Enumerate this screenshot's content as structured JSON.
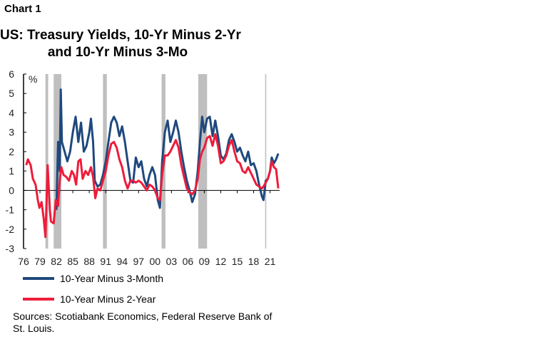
{
  "chart_label": "Chart 1",
  "chart_data": {
    "type": "line",
    "title": "US: Treasury Yields, 10-Yr Minus 2-Yr and 10-Yr Minus 3-Mo",
    "title_lines": [
      "US: Treasury Yields, 10-Yr Minus 2-Yr",
      "and 10-Yr Minus 3-Mo"
    ],
    "ylabel": "%",
    "ylim": [
      -3,
      6
    ],
    "yticks": [
      "-3",
      "-2",
      "-1",
      "0",
      "1",
      "2",
      "3",
      "4",
      "5",
      "6"
    ],
    "xlim": [
      1976,
      2022.6
    ],
    "xticks": [
      "76",
      "79",
      "82",
      "85",
      "88",
      "91",
      "94",
      "97",
      "00",
      "03",
      "06",
      "09",
      "12",
      "15",
      "18",
      "21"
    ],
    "recessions": [
      [
        1980.0,
        1980.5
      ],
      [
        1981.5,
        1982.9
      ],
      [
        1990.5,
        1991.2
      ],
      [
        2001.2,
        2001.9
      ],
      [
        2007.9,
        2009.5
      ],
      [
        2020.1,
        2020.3
      ]
    ],
    "series": [
      {
        "name": "10-Year Minus 3-Month",
        "color": "#1f497d",
        "x": [
          1982.0,
          1982.3,
          1982.6,
          1982.8,
          1983.0,
          1983.5,
          1984.0,
          1984.5,
          1985.0,
          1985.5,
          1986.0,
          1986.5,
          1987.0,
          1987.5,
          1988.0,
          1988.3,
          1988.7,
          1989.0,
          1989.5,
          1990.0,
          1990.5,
          1991.0,
          1991.5,
          1992.0,
          1992.5,
          1993.0,
          1993.5,
          1994.0,
          1994.5,
          1995.0,
          1995.5,
          1996.0,
          1996.5,
          1997.0,
          1997.5,
          1998.0,
          1998.5,
          1999.0,
          1999.5,
          2000.0,
          2000.5,
          2000.9,
          2001.3,
          2001.8,
          2002.3,
          2002.8,
          2003.3,
          2003.8,
          2004.3,
          2004.8,
          2005.3,
          2005.8,
          2006.3,
          2006.8,
          2007.3,
          2007.8,
          2008.2,
          2008.6,
          2009.0,
          2009.5,
          2010.0,
          2010.5,
          2011.0,
          2011.5,
          2012.0,
          2012.5,
          2013.0,
          2013.5,
          2014.0,
          2014.5,
          2015.0,
          2015.5,
          2016.0,
          2016.5,
          2017.0,
          2017.5,
          2018.0,
          2018.5,
          2019.0,
          2019.5,
          2019.8,
          2020.2,
          2020.6,
          2021.0,
          2021.3,
          2021.7,
          2022.1,
          2022.5
        ],
        "values": [
          -1.0,
          2.5,
          1.0,
          5.2,
          2.5,
          2.0,
          1.5,
          2.0,
          3.0,
          3.8,
          2.5,
          3.5,
          2.0,
          2.3,
          3.0,
          3.7,
          2.5,
          0.5,
          0.2,
          0.3,
          0.8,
          1.5,
          2.5,
          3.5,
          3.8,
          3.5,
          2.8,
          3.3,
          2.5,
          1.5,
          0.5,
          0.4,
          1.7,
          1.2,
          1.5,
          0.6,
          0.2,
          0.8,
          1.2,
          0.8,
          -0.5,
          -0.9,
          1.5,
          3.0,
          3.6,
          2.5,
          3.0,
          3.6,
          3.0,
          2.0,
          1.2,
          0.5,
          0.0,
          -0.6,
          -0.2,
          1.0,
          2.5,
          3.8,
          3.0,
          3.7,
          3.8,
          2.8,
          3.6,
          2.8,
          1.8,
          1.6,
          1.9,
          2.6,
          2.9,
          2.5,
          2.0,
          2.2,
          1.8,
          1.5,
          2.0,
          1.3,
          1.4,
          1.0,
          0.3,
          -0.3,
          -0.5,
          0.5,
          0.6,
          1.0,
          1.7,
          1.4,
          1.6,
          1.9
        ]
      },
      {
        "name": "10-Year Minus 2-Year",
        "color": "#ee1c3a",
        "x": [
          1976.5,
          1976.8,
          1977.3,
          1977.7,
          1978.2,
          1978.6,
          1978.9,
          1979.3,
          1979.7,
          1980.0,
          1980.4,
          1980.8,
          1981.0,
          1981.5,
          1981.9,
          1982.3,
          1982.6,
          1982.9,
          1983.3,
          1983.8,
          1984.3,
          1984.8,
          1985.2,
          1985.6,
          1986.0,
          1986.4,
          1986.8,
          1987.3,
          1987.8,
          1988.3,
          1988.7,
          1989.1,
          1989.5,
          1990.0,
          1990.5,
          1991.0,
          1991.5,
          1992.0,
          1992.5,
          1993.0,
          1993.5,
          1994.0,
          1994.5,
          1995.0,
          1995.5,
          1996.0,
          1996.5,
          1997.0,
          1997.5,
          1998.0,
          1998.5,
          1999.0,
          1999.5,
          2000.0,
          2000.5,
          2000.9,
          2001.3,
          2001.8,
          2002.3,
          2002.8,
          2003.3,
          2003.8,
          2004.3,
          2004.8,
          2005.3,
          2005.8,
          2006.3,
          2006.8,
          2007.3,
          2007.8,
          2008.2,
          2008.6,
          2009.0,
          2009.5,
          2010.0,
          2010.5,
          2011.0,
          2011.5,
          2012.0,
          2012.5,
          2013.0,
          2013.5,
          2014.0,
          2014.5,
          2015.0,
          2015.5,
          2016.0,
          2016.5,
          2017.0,
          2017.5,
          2018.0,
          2018.5,
          2019.0,
          2019.5,
          2019.8,
          2020.2,
          2020.6,
          2021.0,
          2021.3,
          2021.7,
          2022.1,
          2022.5
        ],
        "values": [
          1.3,
          1.6,
          1.3,
          0.6,
          0.3,
          -0.5,
          -0.9,
          -0.6,
          -1.5,
          -2.4,
          1.3,
          -1.0,
          -1.6,
          -1.7,
          -0.5,
          -0.8,
          0.5,
          1.2,
          0.8,
          0.7,
          0.5,
          1.0,
          0.8,
          0.3,
          1.5,
          1.6,
          0.6,
          1.0,
          0.8,
          1.2,
          0.7,
          -0.4,
          0.1,
          0.0,
          0.5,
          1.0,
          1.8,
          2.4,
          2.5,
          2.2,
          1.6,
          1.2,
          0.5,
          0.1,
          0.5,
          0.5,
          0.4,
          0.5,
          0.4,
          0.2,
          0.0,
          0.3,
          0.2,
          0.0,
          -0.4,
          -0.5,
          0.8,
          1.8,
          1.8,
          2.0,
          2.3,
          2.6,
          2.2,
          1.3,
          0.7,
          0.1,
          -0.1,
          -0.2,
          0.0,
          0.6,
          1.6,
          2.0,
          2.2,
          2.7,
          2.8,
          2.3,
          2.9,
          2.3,
          1.4,
          1.5,
          1.8,
          2.3,
          2.6,
          2.0,
          1.5,
          1.4,
          1.0,
          0.9,
          1.2,
          0.9,
          0.6,
          0.3,
          0.2,
          0.1,
          0.2,
          0.4,
          0.6,
          1.0,
          1.5,
          1.2,
          1.1,
          0.1
        ]
      }
    ],
    "legend": "bottom-left",
    "grid": false
  },
  "sources": "Sources: Scotiabank Economics, Federal Reserve Bank of St. Louis."
}
